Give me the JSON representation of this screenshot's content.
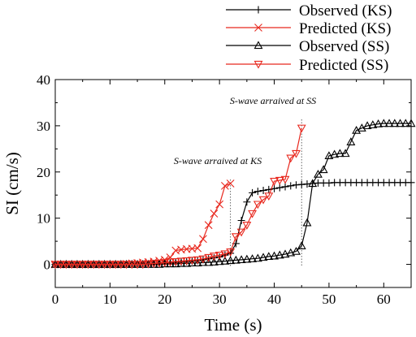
{
  "chart_data": {
    "type": "line",
    "title": "",
    "xlabel": "Time (s)",
    "ylabel": "SI (cm/s)",
    "xlim": [
      0,
      65
    ],
    "ylim": [
      -5,
      40
    ],
    "xticks": [
      "0",
      "10",
      "20",
      "30",
      "40",
      "50",
      "60"
    ],
    "xtick_values": [
      0,
      10,
      20,
      30,
      40,
      50,
      60
    ],
    "yticks": [
      "0",
      "10",
      "20",
      "30",
      "40"
    ],
    "ytick_values": [
      0,
      10,
      20,
      30,
      40
    ],
    "grid": false,
    "legend_position": "top-right, above plot",
    "series": [
      {
        "name": "Observed (KS)",
        "color": "#000000",
        "marker": "plus",
        "x": [
          0,
          1,
          2,
          3,
          4,
          5,
          6,
          7,
          8,
          9,
          10,
          11,
          12,
          13,
          14,
          15,
          16,
          17,
          18,
          19,
          20,
          21,
          22,
          23,
          24,
          25,
          26,
          27,
          28,
          29,
          30,
          31,
          32,
          33,
          34,
          35,
          36,
          37,
          38,
          39,
          40,
          41,
          42,
          43,
          44,
          45,
          46,
          47,
          48,
          49,
          50,
          51,
          52,
          53,
          54,
          55,
          56,
          57,
          58,
          59,
          60,
          61,
          62,
          63,
          64,
          65
        ],
        "y": [
          0,
          0,
          0,
          0,
          0,
          0,
          0,
          0,
          0,
          0,
          0,
          0,
          0,
          0,
          0,
          0,
          0.1,
          0.1,
          0.2,
          0.2,
          0.3,
          0.3,
          0.4,
          0.5,
          0.6,
          0.7,
          0.8,
          1.0,
          1.2,
          1.4,
          1.6,
          2.0,
          2.4,
          4.5,
          9.5,
          13.5,
          15.5,
          15.8,
          16.0,
          16.2,
          16.4,
          16.6,
          16.8,
          17.0,
          17.2,
          17.3,
          17.4,
          17.5,
          17.6,
          17.6,
          17.6,
          17.7,
          17.7,
          17.7,
          17.7,
          17.7,
          17.7,
          17.7,
          17.7,
          17.7,
          17.7,
          17.7,
          17.7,
          17.7,
          17.7,
          17.7
        ]
      },
      {
        "name": "Predicted (KS)",
        "color": "#e8281e",
        "marker": "x",
        "x": [
          0,
          1,
          2,
          3,
          4,
          5,
          6,
          7,
          8,
          9,
          10,
          11,
          12,
          13,
          14,
          15,
          16,
          17,
          18,
          19,
          20,
          21,
          22,
          23,
          24,
          25,
          26,
          27,
          28,
          29,
          30,
          31,
          32
        ],
        "y": [
          0,
          0,
          0,
          0,
          0,
          0,
          0,
          0,
          0,
          0,
          0,
          0,
          0,
          0.1,
          0.2,
          0.3,
          0.4,
          0.5,
          0.6,
          0.8,
          1.0,
          1.5,
          3.0,
          3.2,
          3.3,
          3.4,
          3.5,
          5.5,
          8.5,
          11.0,
          13.0,
          17.0,
          17.5
        ]
      },
      {
        "name": "Observed (SS)",
        "color": "#000000",
        "marker": "triangle-up",
        "x": [
          0,
          1,
          2,
          3,
          4,
          5,
          6,
          7,
          8,
          9,
          10,
          11,
          12,
          13,
          14,
          15,
          16,
          17,
          18,
          19,
          20,
          21,
          22,
          23,
          24,
          25,
          26,
          27,
          28,
          29,
          30,
          31,
          32,
          33,
          34,
          35,
          36,
          37,
          38,
          39,
          40,
          41,
          42,
          43,
          44,
          45,
          46,
          47,
          48,
          49,
          50,
          51,
          52,
          53,
          54,
          55,
          56,
          57,
          58,
          59,
          60,
          61,
          62,
          63,
          64,
          65
        ],
        "y": [
          0,
          0,
          0,
          0,
          0,
          0,
          0,
          0,
          0,
          0,
          0,
          0,
          0,
          0,
          0,
          0,
          0,
          0,
          0,
          0,
          0.1,
          0.1,
          0.1,
          0.2,
          0.2,
          0.3,
          0.3,
          0.4,
          0.4,
          0.5,
          0.6,
          0.7,
          0.8,
          0.9,
          1.0,
          1.1,
          1.2,
          1.3,
          1.5,
          1.7,
          1.8,
          2.0,
          2.2,
          2.5,
          2.8,
          4.0,
          9.0,
          17.5,
          19.5,
          20.5,
          23.5,
          23.8,
          24.0,
          24.0,
          26.5,
          29.0,
          29.5,
          30.0,
          30.2,
          30.4,
          30.5,
          30.5,
          30.5,
          30.5,
          30.5,
          30.5
        ]
      },
      {
        "name": "Predicted (SS)",
        "color": "#e8281e",
        "marker": "triangle-down",
        "x": [
          0,
          1,
          2,
          3,
          4,
          5,
          6,
          7,
          8,
          9,
          10,
          11,
          12,
          13,
          14,
          15,
          16,
          17,
          18,
          19,
          20,
          21,
          22,
          23,
          24,
          25,
          26,
          27,
          28,
          29,
          30,
          31,
          32,
          33,
          34,
          35,
          36,
          37,
          38,
          39,
          40,
          41,
          42,
          43,
          44,
          45
        ],
        "y": [
          0,
          0,
          0,
          0,
          0,
          0,
          0,
          0,
          0,
          0,
          0,
          0,
          0,
          0,
          0,
          0,
          0,
          0.1,
          0.2,
          0.3,
          0.4,
          0.5,
          0.6,
          0.7,
          0.8,
          0.9,
          1.0,
          1.2,
          1.5,
          1.8,
          2.0,
          2.3,
          2.7,
          6.0,
          7.0,
          8.5,
          11.0,
          13.0,
          14.0,
          14.8,
          18.0,
          18.2,
          18.4,
          23.0,
          24.0,
          29.5
        ]
      }
    ],
    "annotations": [
      {
        "text": "S-wave arraived at KS",
        "x": 32
      },
      {
        "text": "S-wave arraived at SS",
        "x": 45
      }
    ]
  }
}
